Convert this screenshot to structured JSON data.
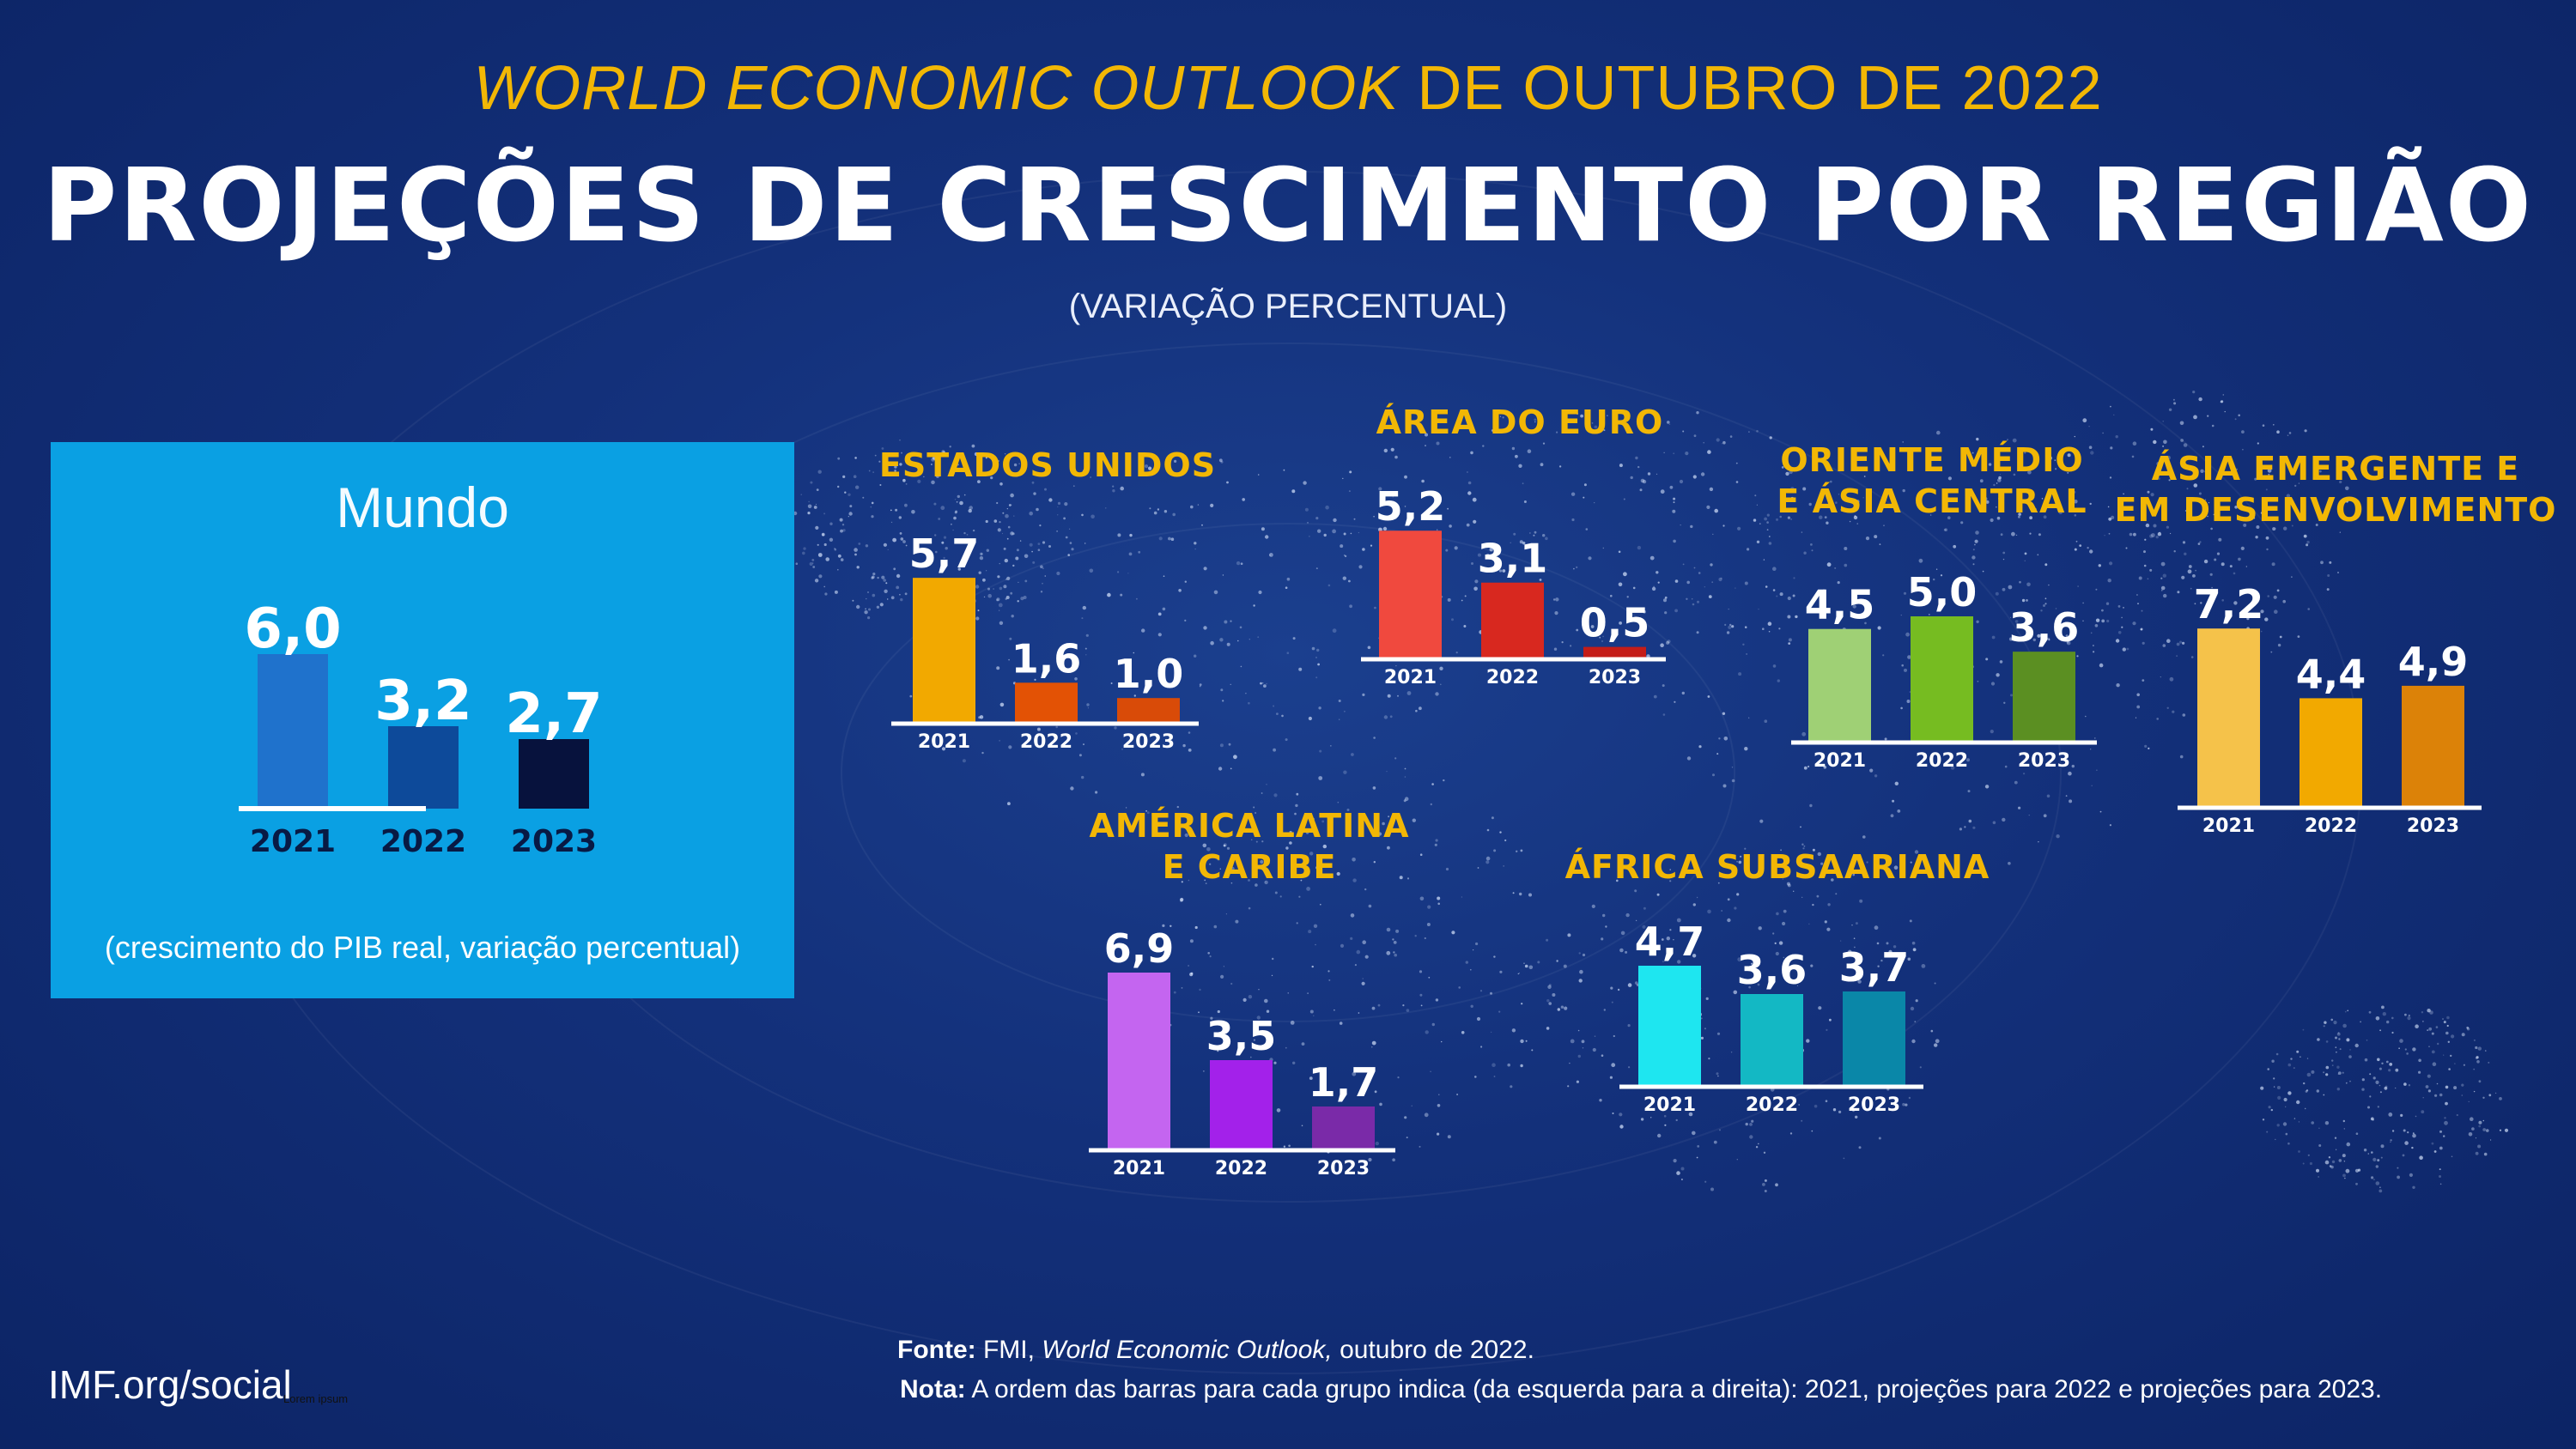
{
  "header": {
    "supertitle_italic": "WORLD ECONOMIC OUTLOOK",
    "supertitle_rest": " DE OUTUBRO DE 2022",
    "title": "PROJEÇÕES DE CRESCIMENTO POR REGIÃO",
    "subtitle": "(VARIAÇÃO PERCENTUAL)"
  },
  "world": {
    "title": "Mundo",
    "note": "(crescimento do PIB real, variação percentual)"
  },
  "footer": {
    "source_label": "Fonte:",
    "source_text_1": " FMI, ",
    "source_text_italic": "World Economic Outlook,",
    "source_text_2": " outubro de 2022.",
    "note_label": "Nota:",
    "note_text": "  A ordem das barras para cada grupo indica (da esquerda para a direita): 2021, projeções para 2022 e projeções para 2023.",
    "site": "IMF.org/social",
    "tiny_text": "Lorem ipsum"
  },
  "chart_data": [
    {
      "type": "bar",
      "id": "mundo",
      "title": "Mundo",
      "categories": [
        "2021",
        "2022",
        "2023"
      ],
      "values": [
        6.0,
        3.2,
        2.7
      ],
      "labels": [
        "6,0",
        "3,2",
        "2,7"
      ],
      "colors": [
        "#1f72cc",
        "#0d4a9a",
        "#07123d"
      ]
    },
    {
      "type": "bar",
      "id": "eua",
      "title": "ESTADOS UNIDOS",
      "categories": [
        "2021",
        "2022",
        "2023"
      ],
      "values": [
        5.7,
        1.6,
        1.0
      ],
      "labels": [
        "5,7",
        "1,6",
        "1,0"
      ],
      "colors": [
        "#f2a900",
        "#e35205",
        "#d94b08"
      ]
    },
    {
      "type": "bar",
      "id": "euro",
      "title": "ÁREA DO EURO",
      "categories": [
        "2021",
        "2022",
        "2023"
      ],
      "values": [
        5.2,
        3.1,
        0.5
      ],
      "labels": [
        "5,2",
        "3,1",
        "0,5"
      ],
      "colors": [
        "#f0493e",
        "#d8281f",
        "#c41c18"
      ]
    },
    {
      "type": "bar",
      "id": "oriente",
      "title": "ORIENTE MÉDIO\nE ÁSIA CENTRAL",
      "categories": [
        "2021",
        "2022",
        "2023"
      ],
      "values": [
        4.5,
        5.0,
        3.6
      ],
      "labels": [
        "4,5",
        "5,0",
        "3,6"
      ],
      "colors": [
        "#9fd075",
        "#76bc21",
        "#5b8f22"
      ]
    },
    {
      "type": "bar",
      "id": "asia",
      "title": "ÁSIA EMERGENTE E\nEM DESENVOLVIMENTO",
      "categories": [
        "2021",
        "2022",
        "2023"
      ],
      "values": [
        7.2,
        4.4,
        4.9
      ],
      "labels": [
        "7,2",
        "4,4",
        "4,9"
      ],
      "colors": [
        "#f5c24a",
        "#f2a900",
        "#dc8208"
      ]
    },
    {
      "type": "bar",
      "id": "latam",
      "title": "AMÉRICA LATINA\nE CARIBE",
      "categories": [
        "2021",
        "2022",
        "2023"
      ],
      "values": [
        6.9,
        3.5,
        1.7
      ],
      "labels": [
        "6,9",
        "3,5",
        "1,7"
      ],
      "colors": [
        "#c465f0",
        "#a321ea",
        "#7a2aa8"
      ]
    },
    {
      "type": "bar",
      "id": "africa",
      "title": "ÁFRICA SUBSAARIANA",
      "categories": [
        "2021",
        "2022",
        "2023"
      ],
      "values": [
        4.7,
        3.6,
        3.7
      ],
      "labels": [
        "4,7",
        "3,6",
        "3,7"
      ],
      "colors": [
        "#1ee6f0",
        "#13b8c4",
        "#0a87a8"
      ]
    }
  ]
}
